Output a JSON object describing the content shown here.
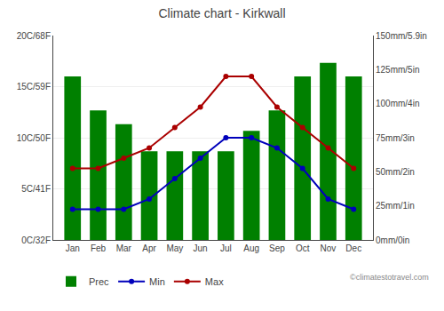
{
  "chart_data": {
    "type": "bar",
    "title": "Climate chart - Kirkwall",
    "categories": [
      "Jan",
      "Feb",
      "Mar",
      "Apr",
      "May",
      "Jun",
      "Jul",
      "Aug",
      "Sep",
      "Oct",
      "Nov",
      "Dec"
    ],
    "series": [
      {
        "name": "Prec",
        "type": "bar",
        "axis": "y2",
        "color": "#008000",
        "values": [
          120,
          95,
          85,
          65,
          65,
          65,
          65,
          80,
          95,
          120,
          130,
          120
        ]
      },
      {
        "name": "Min",
        "type": "line",
        "marker": "circle",
        "color": "#0000BB",
        "values": [
          3,
          3,
          3,
          4,
          6,
          8,
          10,
          10,
          9,
          7,
          4,
          3
        ]
      },
      {
        "name": "Max",
        "type": "line",
        "marker": "circle",
        "color": "#AA0000",
        "values": [
          7,
          7,
          8,
          9,
          11,
          13,
          16,
          16,
          13,
          11,
          9,
          7
        ]
      }
    ],
    "ylim": [
      0,
      20
    ],
    "yticks": [
      {
        "value": 0,
        "label": "0C/32F"
      },
      {
        "value": 5,
        "label": "5C/41F"
      },
      {
        "value": 10,
        "label": "10C/50F"
      },
      {
        "value": 15,
        "label": "15C/59F"
      },
      {
        "value": 20,
        "label": "20C/68F"
      }
    ],
    "y2lim": [
      0,
      150
    ],
    "y2ticks": [
      {
        "value": 0,
        "label": "0mm/0in"
      },
      {
        "value": 25,
        "label": "25mm/1in"
      },
      {
        "value": 50,
        "label": "50mm/2in"
      },
      {
        "value": 75,
        "label": "75mm/3in"
      },
      {
        "value": 100,
        "label": "100mm/4in"
      },
      {
        "value": 125,
        "label": "125mm/5in"
      },
      {
        "value": 150,
        "label": "150mm/5.9in"
      }
    ],
    "grid": true,
    "legend": "bottom",
    "annotations": [
      "©climatestotravel.com"
    ]
  }
}
